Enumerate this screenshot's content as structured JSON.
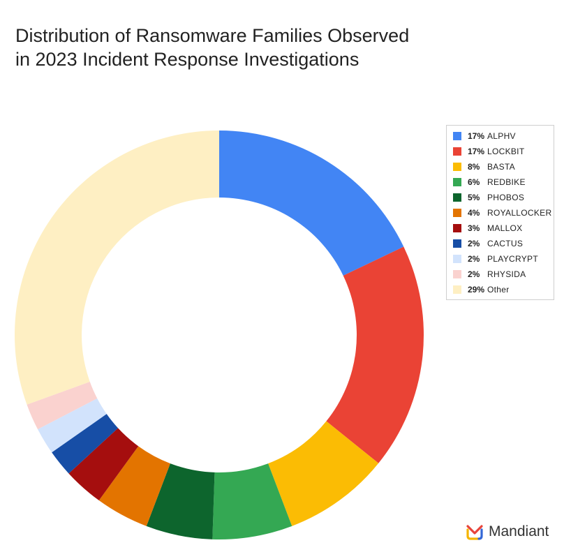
{
  "title_lines": [
    "Distribution of Ransomware Families Observed",
    "in 2023 Incident Response Investigations"
  ],
  "brand": {
    "name": "Mandiant",
    "icon": "mandiant-logo-icon"
  },
  "chart_data": {
    "type": "pie",
    "donut": true,
    "title": "Distribution of Ransomware Families Observed in 2023 Incident Response Investigations",
    "legend_position": "top-right",
    "unit": "%",
    "slices": [
      {
        "label": "ALPHV",
        "value": 17,
        "display": "17%",
        "color": "#4285F4"
      },
      {
        "label": "LOCKBIT",
        "value": 17,
        "display": "17%",
        "color": "#EA4335"
      },
      {
        "label": "BASTA",
        "value": 8,
        "display": "8%",
        "color": "#FBBC04"
      },
      {
        "label": "REDBIKE",
        "value": 6,
        "display": "6%",
        "color": "#34A853"
      },
      {
        "label": "PHOBOS",
        "value": 5,
        "display": "5%",
        "color": "#0D652D"
      },
      {
        "label": "ROYALLOCKER",
        "value": 4,
        "display": "4%",
        "color": "#E37400"
      },
      {
        "label": "MALLOX",
        "value": 3,
        "display": "3%",
        "color": "#A50E0E"
      },
      {
        "label": "CACTUS",
        "value": 2,
        "display": "2%",
        "color": "#174EA6"
      },
      {
        "label": "PLAYCRYPT",
        "value": 2,
        "display": "2%",
        "color": "#D2E3FC"
      },
      {
        "label": "RHYSIDA",
        "value": 2,
        "display": "2%",
        "color": "#FAD2CF"
      },
      {
        "label": "Other",
        "value": 29,
        "display": "29%",
        "color": "#FEEFC3"
      }
    ]
  }
}
